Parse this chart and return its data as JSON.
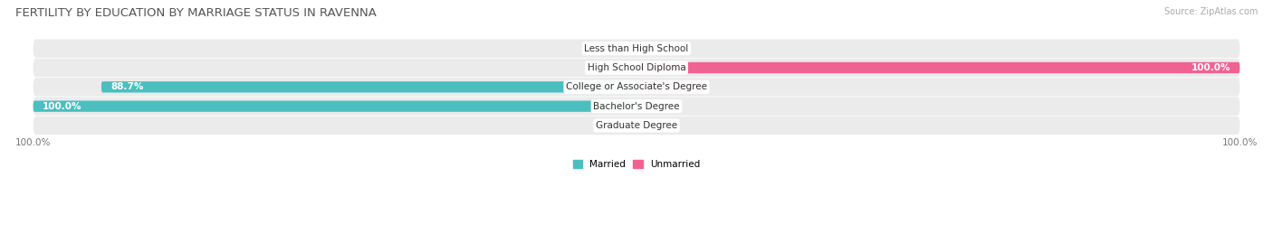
{
  "title": "FERTILITY BY EDUCATION BY MARRIAGE STATUS IN RAVENNA",
  "source": "Source: ZipAtlas.com",
  "categories": [
    "Less than High School",
    "High School Diploma",
    "College or Associate's Degree",
    "Bachelor's Degree",
    "Graduate Degree"
  ],
  "married": [
    0.0,
    0.0,
    88.7,
    100.0,
    0.0
  ],
  "unmarried": [
    0.0,
    100.0,
    11.3,
    0.0,
    0.0
  ],
  "married_color": "#4bbfbf",
  "unmarried_color": "#f06292",
  "bg_row_color": "#ebebeb",
  "title_fontsize": 9.5,
  "label_fontsize": 7.5,
  "category_fontsize": 7.5,
  "axis_max": 100.0,
  "legend_married": "Married",
  "legend_unmarried": "Unmarried"
}
